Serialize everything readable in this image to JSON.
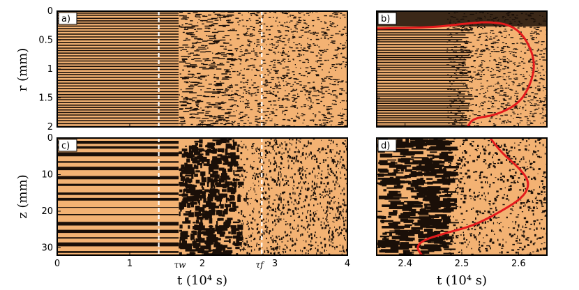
{
  "panels": {
    "a": {
      "label": "a)"
    },
    "b": {
      "label": "b)"
    },
    "c": {
      "label": "c)"
    },
    "d": {
      "label": "d)"
    }
  },
  "left_axes": {
    "r_label": "r  (mm)",
    "z_label": "z  (mm)",
    "t_label": "t  (10⁴ s)",
    "r_ticks": [
      "0",
      "0.5",
      "1",
      "1.5",
      "2"
    ],
    "z_ticks": [
      "0",
      "10",
      "20",
      "30"
    ],
    "t_ticks": [
      "0",
      "1",
      "2",
      "3",
      "4"
    ]
  },
  "right_axes": {
    "t_label": "t  (10⁴ s)",
    "t_ticks": [
      "2.4",
      "2.5",
      "2.6"
    ]
  },
  "markers": {
    "tau_w": "τw",
    "tau_f": "τf"
  },
  "colors": {
    "stripe_light": "#f3b273",
    "stripe_dark": "#1a0f08",
    "profile": "#e41a1c",
    "marker": "#ffffff"
  },
  "chart_data": [
    {
      "type": "heatmap",
      "panel": "a",
      "xlabel": "t (10^4 s)",
      "ylabel": "r (mm)",
      "xlim": [
        0,
        4
      ],
      "ylim": [
        0,
        2
      ],
      "markers": [
        {
          "name": "τw",
          "x": 1.4
        },
        {
          "name": "τf",
          "x": 2.82
        }
      ]
    },
    {
      "type": "heatmap",
      "panel": "b",
      "xlabel": "t (10^4 s)",
      "ylabel": "",
      "xlim": [
        2.35,
        2.65
      ],
      "ylim": [
        0,
        2
      ],
      "series": [
        {
          "values_x": [
            2.35,
            2.45,
            2.5,
            2.55,
            2.59,
            2.615,
            2.63,
            2.62,
            2.6,
            2.56,
            2.52,
            2.51
          ],
          "values_y": [
            0.3,
            0.28,
            0.22,
            0.18,
            0.25,
            0.5,
            0.9,
            1.3,
            1.6,
            1.8,
            1.85,
            2.0
          ]
        }
      ]
    },
    {
      "type": "heatmap",
      "panel": "c",
      "xlabel": "t (10^4 s)",
      "ylabel": "z (mm)",
      "xlim": [
        0,
        4
      ],
      "ylim": [
        0,
        32
      ],
      "markers": [
        {
          "name": "τw",
          "x": 1.4
        },
        {
          "name": "τf",
          "x": 2.82
        }
      ]
    },
    {
      "type": "heatmap",
      "panel": "d",
      "xlabel": "t (10^4 s)",
      "ylabel": "",
      "xlim": [
        2.35,
        2.65
      ],
      "ylim": [
        0,
        32
      ],
      "series": [
        {
          "values_x": [
            2.55,
            2.57,
            2.6,
            2.62,
            2.61,
            2.57,
            2.52,
            2.47,
            2.43,
            2.42,
            2.43
          ],
          "values_y": [
            0,
            4,
            8,
            12,
            16,
            20,
            24,
            26,
            28,
            30,
            32
          ]
        }
      ]
    }
  ]
}
